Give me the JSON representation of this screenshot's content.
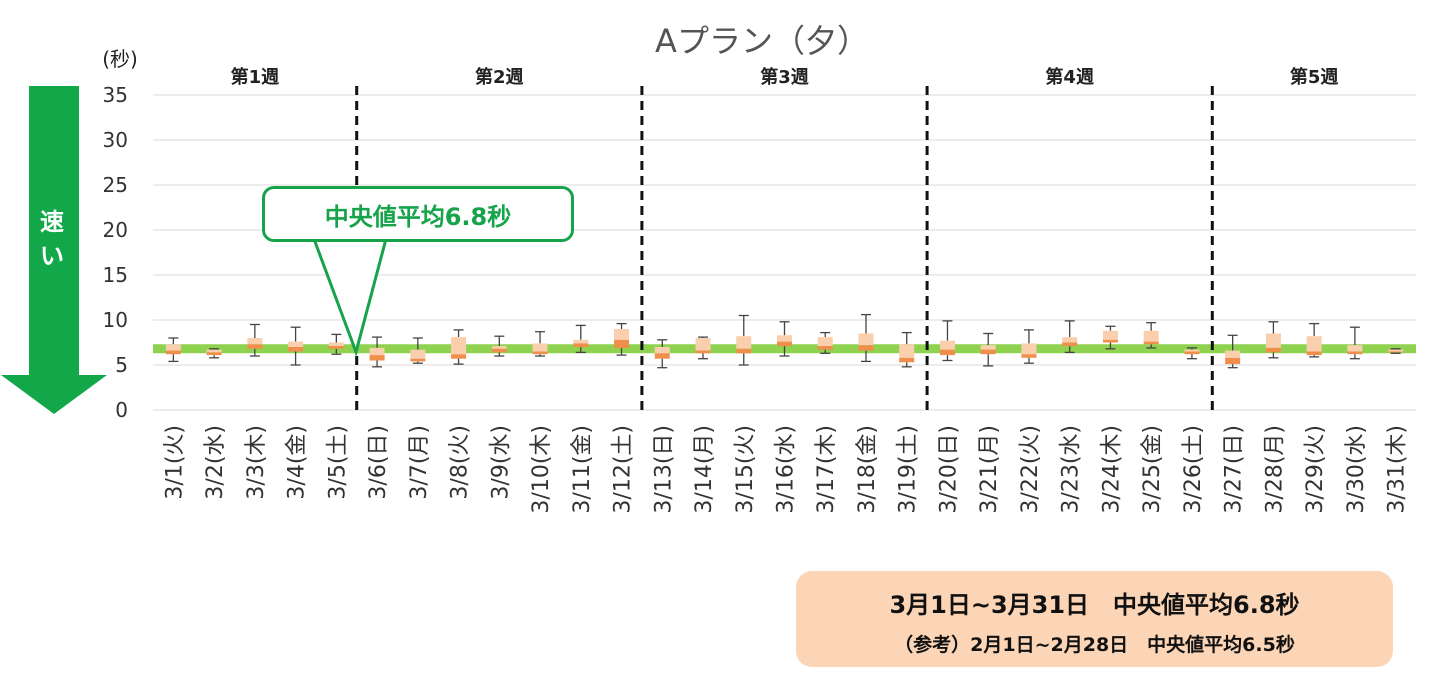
{
  "chart_data": {
    "type": "boxplot",
    "title": "Aプラン（夕）",
    "yunit": "(秒)",
    "ylim": [
      0,
      35
    ],
    "yticks": [
      0,
      5,
      10,
      15,
      20,
      25,
      30,
      35
    ],
    "grid": true,
    "categories": [
      "3/1(火)",
      "3/2(水)",
      "3/3(木)",
      "3/4(金)",
      "3/5(土)",
      "3/6(日)",
      "3/7(月)",
      "3/8(火)",
      "3/9(水)",
      "3/10(木)",
      "3/11(金)",
      "3/12(土)",
      "3/13(日)",
      "3/14(月)",
      "3/15(火)",
      "3/16(水)",
      "3/17(木)",
      "3/18(金)",
      "3/19(土)",
      "3/20(日)",
      "3/21(月)",
      "3/22(火)",
      "3/23(水)",
      "3/24(木)",
      "3/25(金)",
      "3/26(土)",
      "3/27(日)",
      "3/28(月)",
      "3/29(火)",
      "3/30(水)",
      "3/31(木)"
    ],
    "boxes": [
      {
        "min": 5.4,
        "q1": 6.2,
        "median": 6.6,
        "q3": 7.3,
        "max": 8.0
      },
      {
        "min": 5.8,
        "q1": 6.1,
        "median": 6.4,
        "q3": 6.7,
        "max": 6.8
      },
      {
        "min": 6.0,
        "q1": 6.8,
        "median": 7.3,
        "q3": 8.0,
        "max": 9.5
      },
      {
        "min": 5.0,
        "q1": 6.5,
        "median": 7.0,
        "q3": 7.6,
        "max": 9.2
      },
      {
        "min": 6.2,
        "q1": 6.8,
        "median": 7.1,
        "q3": 7.5,
        "max": 8.4
      },
      {
        "min": 4.8,
        "q1": 5.5,
        "median": 6.1,
        "q3": 6.9,
        "max": 8.1
      },
      {
        "min": 5.2,
        "q1": 5.4,
        "median": 5.7,
        "q3": 6.7,
        "max": 8.0
      },
      {
        "min": 5.1,
        "q1": 5.7,
        "median": 6.2,
        "q3": 8.1,
        "max": 8.9
      },
      {
        "min": 6.0,
        "q1": 6.4,
        "median": 6.8,
        "q3": 7.1,
        "max": 8.2
      },
      {
        "min": 6.0,
        "q1": 6.2,
        "median": 6.5,
        "q3": 7.4,
        "max": 8.7
      },
      {
        "min": 6.4,
        "q1": 7.0,
        "median": 7.4,
        "q3": 7.8,
        "max": 9.4
      },
      {
        "min": 6.1,
        "q1": 6.9,
        "median": 7.8,
        "q3": 9.0,
        "max": 9.6
      },
      {
        "min": 4.7,
        "q1": 5.7,
        "median": 6.3,
        "q3": 7.0,
        "max": 7.8
      },
      {
        "min": 5.7,
        "q1": 6.3,
        "median": 6.6,
        "q3": 8.0,
        "max": 8.1
      },
      {
        "min": 5.0,
        "q1": 6.3,
        "median": 6.8,
        "q3": 8.2,
        "max": 10.5
      },
      {
        "min": 6.0,
        "q1": 7.1,
        "median": 7.6,
        "q3": 8.3,
        "max": 9.8
      },
      {
        "min": 6.3,
        "q1": 6.7,
        "median": 7.1,
        "q3": 8.1,
        "max": 8.6
      },
      {
        "min": 5.4,
        "q1": 6.6,
        "median": 7.2,
        "q3": 8.5,
        "max": 10.6
      },
      {
        "min": 4.8,
        "q1": 5.3,
        "median": 5.8,
        "q3": 7.3,
        "max": 8.6
      },
      {
        "min": 5.5,
        "q1": 6.1,
        "median": 6.7,
        "q3": 7.7,
        "max": 9.9
      },
      {
        "min": 4.9,
        "q1": 6.2,
        "median": 6.7,
        "q3": 7.2,
        "max": 8.5
      },
      {
        "min": 5.2,
        "q1": 5.8,
        "median": 6.2,
        "q3": 7.4,
        "max": 8.9
      },
      {
        "min": 6.4,
        "q1": 7.1,
        "median": 7.5,
        "q3": 8.1,
        "max": 9.9
      },
      {
        "min": 6.8,
        "q1": 7.5,
        "median": 7.8,
        "q3": 8.8,
        "max": 9.3
      },
      {
        "min": 6.9,
        "q1": 7.3,
        "median": 7.6,
        "q3": 8.8,
        "max": 9.7
      },
      {
        "min": 5.7,
        "q1": 6.2,
        "median": 6.5,
        "q3": 6.7,
        "max": 6.9
      },
      {
        "min": 4.7,
        "q1": 5.1,
        "median": 5.8,
        "q3": 6.6,
        "max": 8.3
      },
      {
        "min": 5.8,
        "q1": 6.4,
        "median": 6.9,
        "q3": 8.5,
        "max": 9.8
      },
      {
        "min": 5.9,
        "q1": 6.1,
        "median": 6.5,
        "q3": 8.2,
        "max": 9.6
      },
      {
        "min": 5.7,
        "q1": 6.2,
        "median": 6.5,
        "q3": 7.2,
        "max": 9.2
      },
      {
        "min": 6.3,
        "q1": 6.4,
        "median": 6.5,
        "q3": 6.7,
        "max": 6.8
      }
    ],
    "reference_line": {
      "value": 6.8,
      "color": "#8ed24f"
    },
    "weeks": [
      {
        "label": "第1週",
        "start": 0,
        "end": 4
      },
      {
        "label": "第2週",
        "start": 5,
        "end": 11
      },
      {
        "label": "第3週",
        "start": 12,
        "end": 18
      },
      {
        "label": "第4週",
        "start": 19,
        "end": 25
      },
      {
        "label": "第5週",
        "start": 26,
        "end": 30
      }
    ],
    "colors": {
      "box_upper": "#f9cfae",
      "box_lower": "#f08f4c",
      "whisker": "#444444",
      "grid": "#d9d9d9",
      "arrow": "#12a84a"
    }
  },
  "arrow_label": "速い",
  "callout": {
    "text": "中央値平均6.8秒"
  },
  "summary": {
    "main": "3月1日~3月31日　中央値平均6.8秒",
    "reference": "（参考）2月1日~2月28日　中央値平均6.5秒"
  }
}
